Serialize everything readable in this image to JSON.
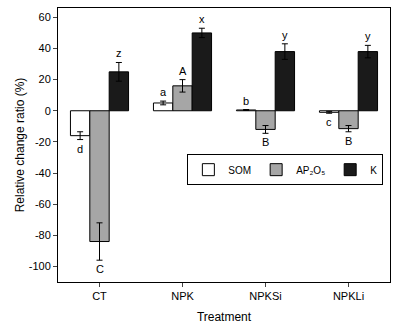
{
  "chart_data": {
    "type": "bar",
    "x_label": "Treatment",
    "y_label": "Relative change ratio (%)",
    "categories": [
      "CT",
      "NPK",
      "NPKSi",
      "NPKLi"
    ],
    "series": [
      {
        "name": "SOM",
        "color": "#ffffff",
        "values": [
          -16,
          5,
          0.5,
          -1
        ],
        "errors": [
          2.5,
          1.2,
          0.3,
          0.6
        ],
        "significance": [
          "d",
          "a",
          "b",
          "c"
        ]
      },
      {
        "name": "AP₂O₅",
        "color": "#a6a6a6",
        "values": [
          -84,
          16,
          -12,
          -11.5
        ],
        "errors": [
          12,
          4,
          2.5,
          2
        ],
        "significance": [
          "C",
          "A",
          "B",
          "B"
        ]
      },
      {
        "name": "K",
        "color": "#1a1a1a",
        "values": [
          25,
          50,
          38,
          38
        ],
        "errors": [
          6,
          3,
          5,
          4
        ],
        "significance": [
          "z",
          "x",
          "y",
          "y"
        ]
      }
    ],
    "ylim": [
      -110,
      66
    ],
    "yticks": [
      -100,
      -80,
      -60,
      -40,
      -20,
      0,
      20,
      40,
      60
    ],
    "legend": "right",
    "grid": false
  }
}
